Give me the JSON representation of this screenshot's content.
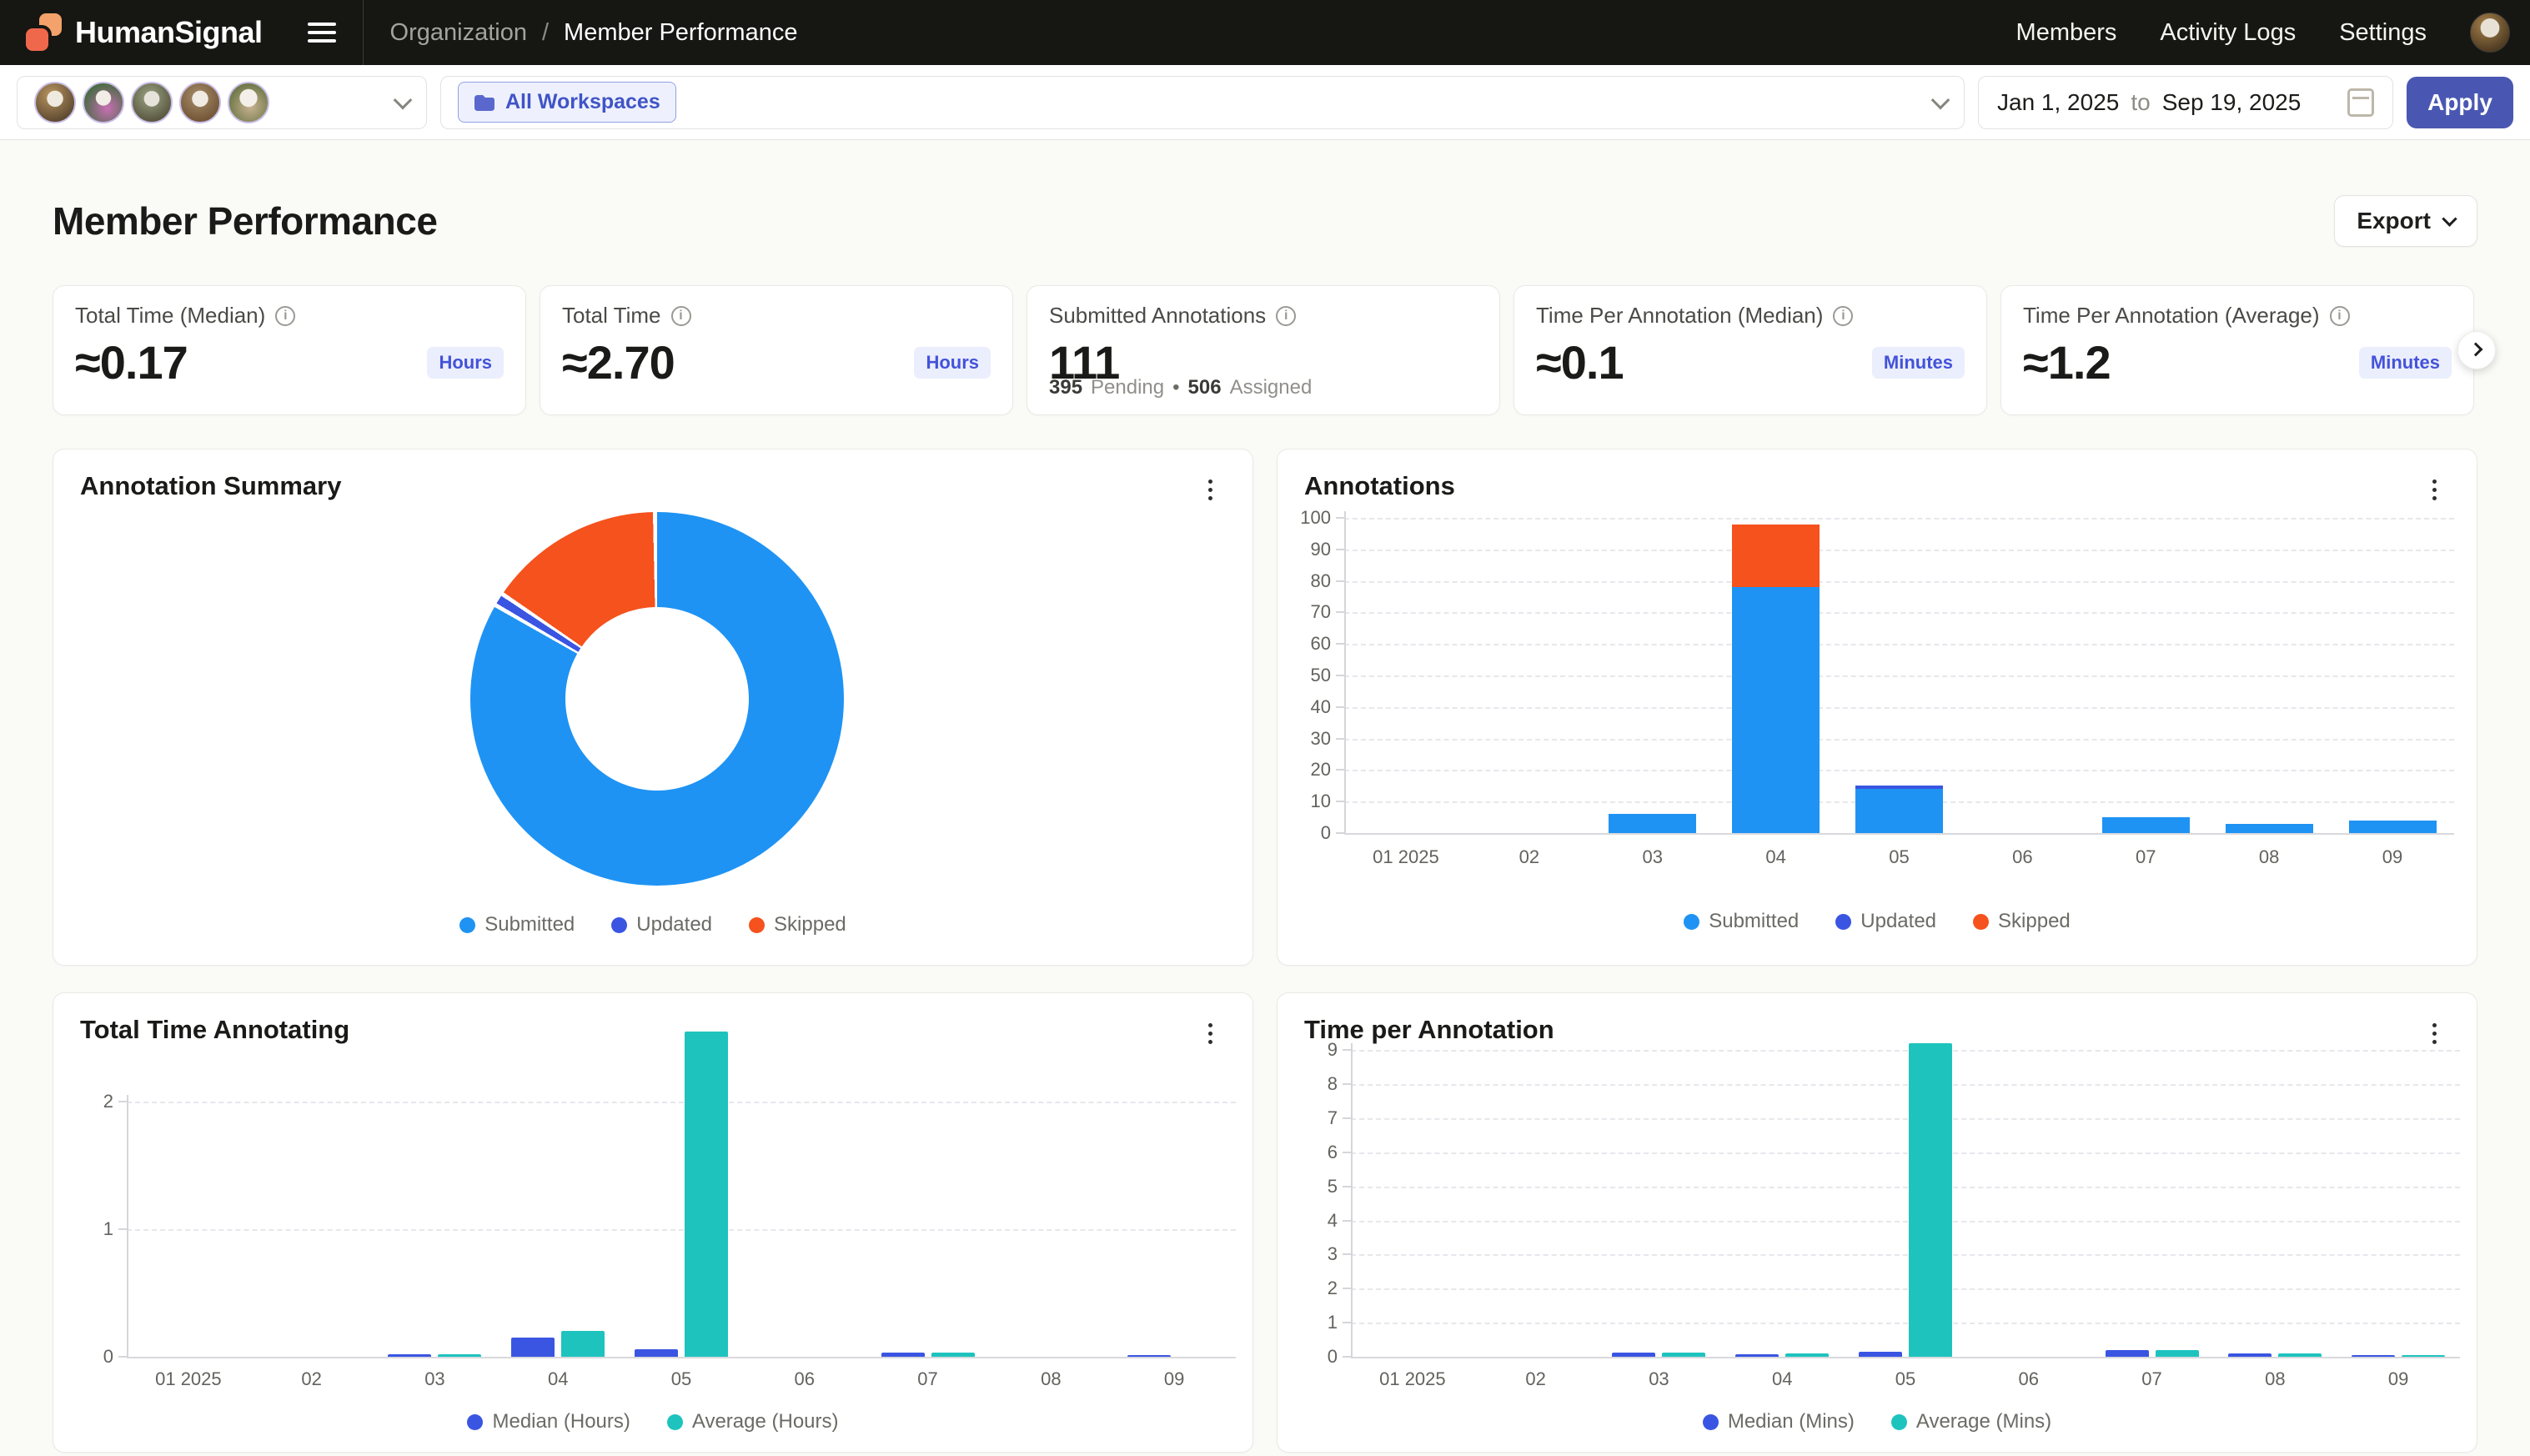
{
  "nav": {
    "brand": "HumanSignal",
    "breadcrumb": {
      "parent": "Organization",
      "separator": "/",
      "current": "Member Performance"
    },
    "links": [
      "Members",
      "Activity Logs",
      "Settings"
    ]
  },
  "toolbar": {
    "workspaces_chip": "All Workspaces",
    "date_from": "Jan 1, 2025",
    "date_join": "to",
    "date_to": "Sep 19, 2025",
    "apply_label": "Apply"
  },
  "page": {
    "title": "Member Performance",
    "export_label": "Export"
  },
  "stat_cards": [
    {
      "label": "Total Time (Median)",
      "value": "≈0.17",
      "unit": "Hours"
    },
    {
      "label": "Total Time",
      "value": "≈2.70",
      "unit": "Hours"
    },
    {
      "label": "Submitted Annotations",
      "value": "111",
      "unit": null,
      "footnote": [
        {
          "num": "395",
          "text": "Pending"
        },
        {
          "num": "506",
          "text": "Assigned"
        }
      ]
    },
    {
      "label": "Time Per Annotation (Median)",
      "value": "≈0.1",
      "unit": "Minutes"
    },
    {
      "label": "Time Per Annotation (Average)",
      "value": "≈1.2",
      "unit": "Minutes"
    }
  ],
  "colors": {
    "submitted": "#1E93F4",
    "updated": "#3A55E2",
    "skipped": "#F5521D",
    "median": "#3A55E2",
    "average": "#1EC3BE",
    "accent_indigo": "#4A57B2"
  },
  "chart_data": [
    {
      "type": "pie",
      "title": "Annotation Summary",
      "labels": [
        "Submitted",
        "Updated",
        "Skipped"
      ],
      "values": [
        111,
        1,
        20
      ],
      "colors": [
        "#1E93F4",
        "#3A55E2",
        "#F5521D"
      ],
      "legend_position": "bottom"
    },
    {
      "type": "bar",
      "title": "Annotations",
      "stacked": true,
      "categories": [
        "01 2025",
        "02",
        "03",
        "04",
        "05",
        "06",
        "07",
        "08",
        "09"
      ],
      "series": [
        {
          "name": "Submitted",
          "color": "#1E93F4",
          "values": [
            0,
            0,
            6,
            78,
            14,
            0,
            5,
            3,
            4
          ]
        },
        {
          "name": "Updated",
          "color": "#3A55E2",
          "values": [
            0,
            0,
            0,
            0,
            1,
            0,
            0,
            0,
            0
          ]
        },
        {
          "name": "Skipped",
          "color": "#F5521D",
          "values": [
            0,
            0,
            0,
            20,
            0,
            0,
            0,
            0,
            0
          ]
        }
      ],
      "ylim": [
        0,
        100
      ],
      "yticks": [
        0,
        10,
        20,
        30,
        40,
        50,
        60,
        70,
        80,
        90,
        100
      ],
      "grid": "dashed-horizontal",
      "legend_position": "bottom"
    },
    {
      "type": "bar",
      "title": "Total Time Annotating",
      "stacked": false,
      "categories": [
        "01 2025",
        "02",
        "03",
        "04",
        "05",
        "06",
        "07",
        "08",
        "09"
      ],
      "series": [
        {
          "name": "Median (Hours)",
          "color": "#3A55E2",
          "values": [
            0,
            0,
            0.02,
            0.15,
            0.06,
            0,
            0.03,
            0,
            0.01
          ]
        },
        {
          "name": "Average (Hours)",
          "color": "#1EC3BE",
          "values": [
            0,
            0,
            0.02,
            0.2,
            2.55,
            0,
            0.03,
            0,
            0
          ]
        }
      ],
      "ylim": [
        0,
        2.55
      ],
      "yticks": [
        0,
        1,
        2
      ],
      "grid": "dashed-horizontal",
      "legend_position": "bottom"
    },
    {
      "type": "bar",
      "title": "Time per Annotation",
      "stacked": false,
      "categories": [
        "01 2025",
        "02",
        "03",
        "04",
        "05",
        "06",
        "07",
        "08",
        "09"
      ],
      "series": [
        {
          "name": "Median (Mins)",
          "color": "#3A55E2",
          "values": [
            0,
            0,
            0.12,
            0.08,
            0.15,
            0,
            0.2,
            0.1,
            0.06
          ]
        },
        {
          "name": "Average (Mins)",
          "color": "#1EC3BE",
          "values": [
            0,
            0,
            0.12,
            0.1,
            9.2,
            0,
            0.2,
            0.1,
            0.06
          ]
        }
      ],
      "ylim": [
        0,
        9.25
      ],
      "yticks": [
        0,
        1,
        2,
        3,
        4,
        5,
        6,
        7,
        8,
        9
      ],
      "grid": "dashed-horizontal",
      "legend_position": "bottom"
    }
  ]
}
